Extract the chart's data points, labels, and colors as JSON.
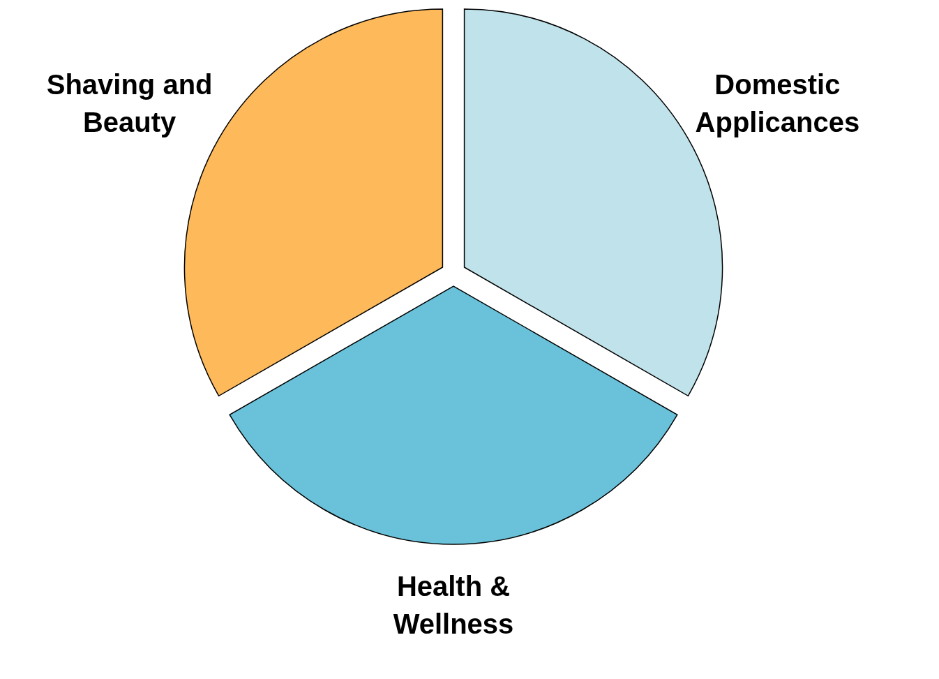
{
  "chart_data": {
    "type": "pie",
    "categories": [
      "Domestic Applicances",
      "Health & Wellness",
      "Shaving and Beauty"
    ],
    "values": [
      33.3,
      33.4,
      33.3
    ],
    "colors": [
      "#c0e3eb",
      "#69c2da",
      "#fdb95a"
    ]
  }
}
